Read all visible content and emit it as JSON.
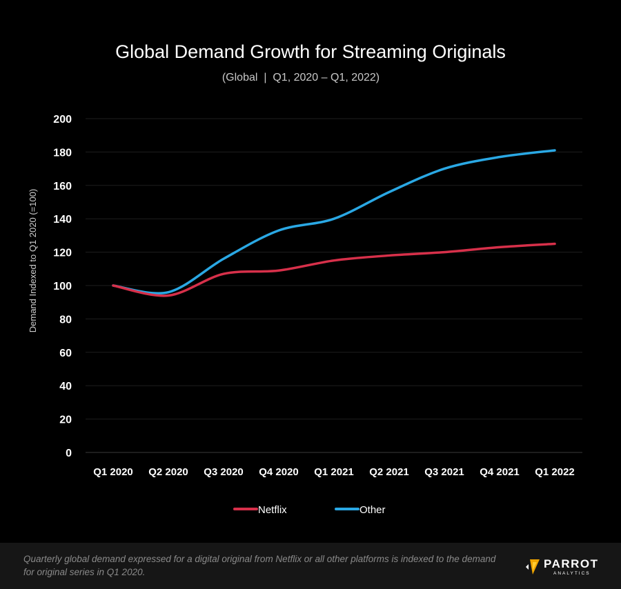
{
  "chart_data": {
    "type": "line",
    "title": "Global Demand Growth for Streaming Originals",
    "subtitle": "(Global  |  Q1, 2020 – Q1, 2022)",
    "xlabel": "",
    "ylabel": "Demand Indexed to Q1 2020 (=100)",
    "categories": [
      "Q1 2020",
      "Q2 2020",
      "Q3 2020",
      "Q4 2020",
      "Q1 2021",
      "Q2 2021",
      "Q3 2021",
      "Q4 2021",
      "Q1 2022"
    ],
    "ylim": [
      0,
      200
    ],
    "yticks": [
      0,
      20,
      40,
      60,
      80,
      100,
      120,
      140,
      160,
      180,
      200
    ],
    "grid": true,
    "legend_position": "bottom",
    "series": [
      {
        "name": "Netflix",
        "color": "#d7304a",
        "values": [
          100,
          94,
          107,
          109,
          115,
          118,
          120,
          123,
          125
        ]
      },
      {
        "name": "Other",
        "color": "#2aa8e4",
        "values": [
          100,
          96,
          116,
          133,
          140,
          156,
          170,
          177,
          181
        ]
      }
    ]
  },
  "footer": {
    "note": "Quarterly global demand expressed for a digital original from Netflix or all other platforms is indexed to the demand for original series in Q1 2020.",
    "logo_word": "PARROT",
    "logo_sub": "ANALYTICS",
    "logo_icon": "parrot-logo-icon"
  }
}
